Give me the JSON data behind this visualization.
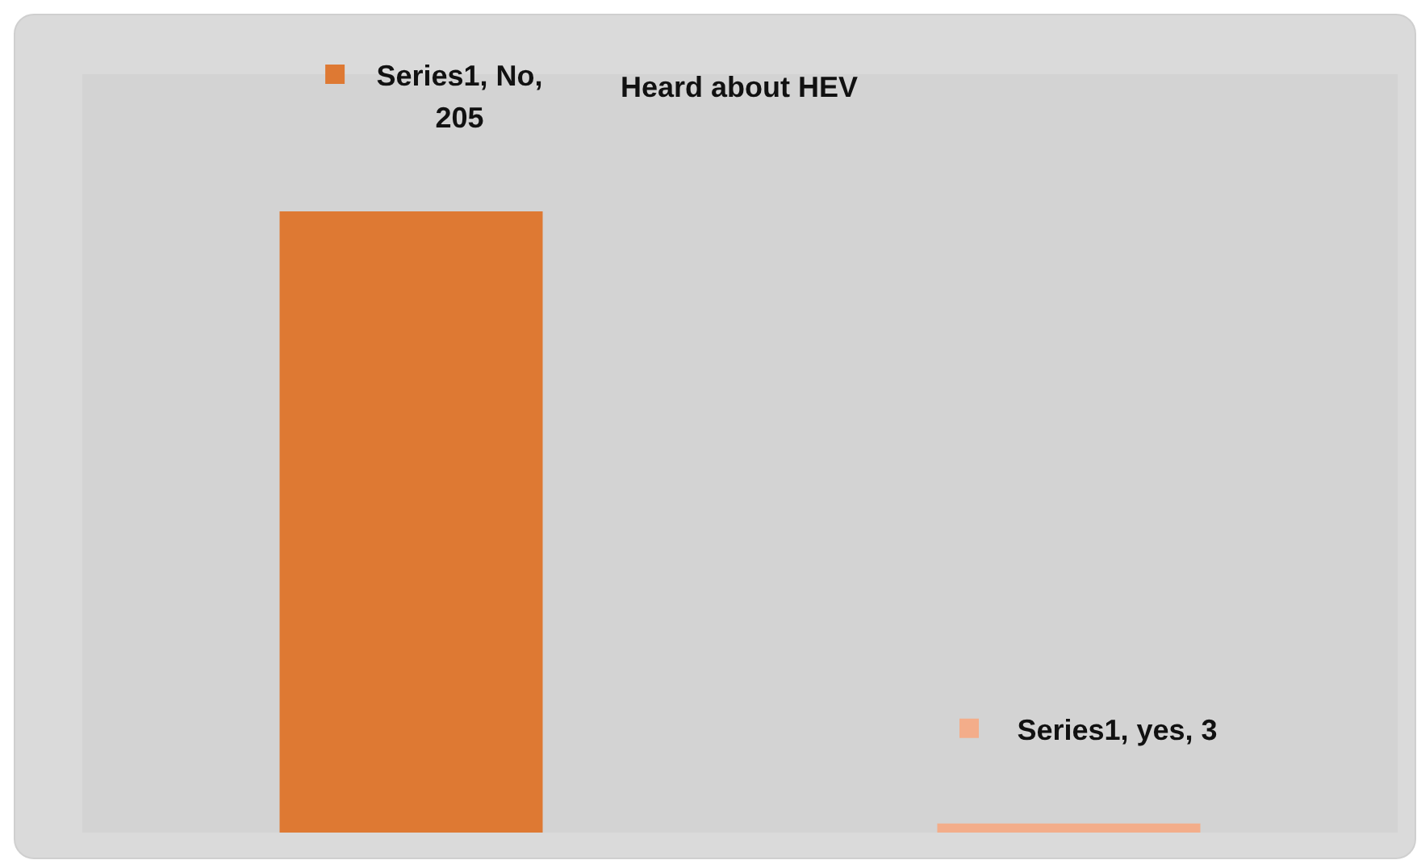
{
  "chart_data": {
    "type": "bar",
    "title": "Heard about HEV",
    "categories": [
      null,
      null
    ],
    "series": [
      {
        "values": [
          205,
          3
        ],
        "colors": [
          "#de7933",
          "#f3ad8a"
        ],
        "value_labels": [
          "Series1, No, 205",
          "Series1, yes, 3"
        ]
      }
    ],
    "relative": false,
    "grid": false
  }
}
